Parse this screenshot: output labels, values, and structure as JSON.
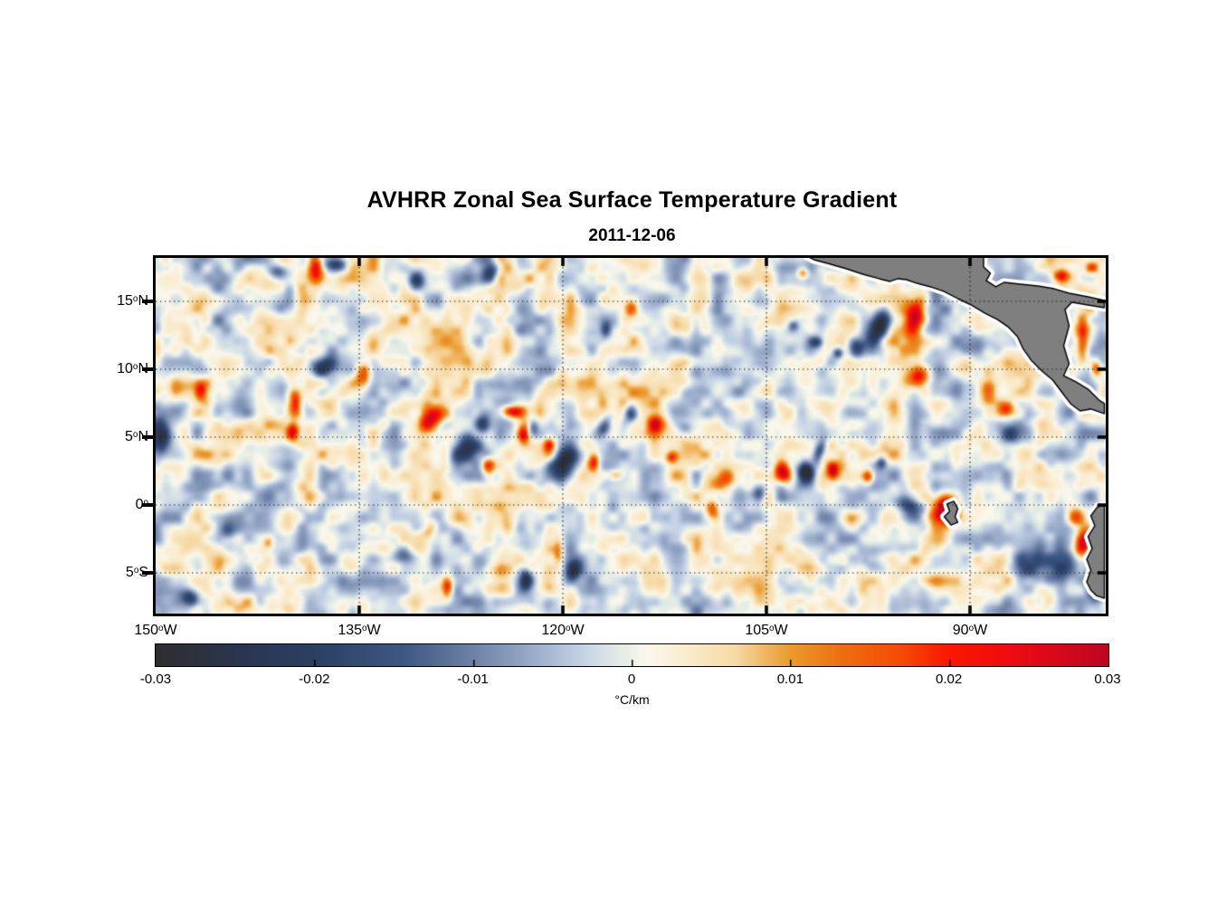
{
  "title": "AVHRR Zonal Sea Surface Temperature Gradient",
  "subtitle": "2011-12-06",
  "chart_data": {
    "type": "heatmap",
    "title": "AVHRR Zonal Sea Surface Temperature Gradient",
    "subtitle": "2011-12-06",
    "lon_range": [
      -150,
      -80
    ],
    "lat_range": [
      -8.0,
      18.2
    ],
    "xticks": [
      {
        "num": "150",
        "hem": "W",
        "lon": -150
      },
      {
        "num": "135",
        "hem": "W",
        "lon": -135
      },
      {
        "num": "120",
        "hem": "W",
        "lon": -120
      },
      {
        "num": "105",
        "hem": "W",
        "lon": -105
      },
      {
        "num": "90",
        "hem": "W",
        "lon": -90
      }
    ],
    "yticks": [
      {
        "num": "15",
        "hem": "N",
        "lat": 15
      },
      {
        "num": "10",
        "hem": "N",
        "lat": 10
      },
      {
        "num": "5",
        "hem": "N",
        "lat": 5
      },
      {
        "num": "0",
        "hem": "",
        "lat": 0
      },
      {
        "num": "5",
        "hem": "S",
        "lat": -5
      }
    ],
    "grid": {
      "lats": [
        15,
        10,
        5,
        0,
        -5
      ],
      "lons": [
        -135,
        -120,
        -105,
        -90
      ],
      "style": "dotted"
    },
    "colors": {
      "background": "#ffffff",
      "land": "#7f7f7f",
      "coast": "#000000",
      "coast_halo": "#ffffff",
      "grid": "#1a1a1a",
      "frame": "#000000"
    },
    "colorbar": {
      "min": -0.03,
      "max": 0.03,
      "tick_labels": [
        "-0.03",
        "-0.02",
        "-0.01",
        "0",
        "0.01",
        "0.02",
        "0.03"
      ],
      "unit": "°C/km",
      "stops": [
        [
          0.0,
          "#2e2e2e"
        ],
        [
          0.09,
          "#2a3550"
        ],
        [
          0.167,
          "#2b3f63"
        ],
        [
          0.26,
          "#3d5884"
        ],
        [
          0.333,
          "#6e81a6"
        ],
        [
          0.4,
          "#9dafcc"
        ],
        [
          0.45,
          "#c6d3e6"
        ],
        [
          0.485,
          "#e2ebe6"
        ],
        [
          0.5,
          "#edf2e8"
        ],
        [
          0.515,
          "#fbf8ee"
        ],
        [
          0.55,
          "#faeed3"
        ],
        [
          0.61,
          "#f6d9a4"
        ],
        [
          0.667,
          "#eb9a2c"
        ],
        [
          0.72,
          "#ed6f12"
        ],
        [
          0.78,
          "#f64c04"
        ],
        [
          0.833,
          "#fa1800"
        ],
        [
          0.9,
          "#ee0a12"
        ],
        [
          1.0,
          "#bd0722"
        ]
      ]
    },
    "noise": {
      "seed": 7,
      "octaves": [
        {
          "amp": 0.0085,
          "cell": 24
        },
        {
          "amp": 0.0042,
          "cell": 11.5
        }
      ]
    },
    "features": [
      [
        -149.5,
        5.1,
        -0.03,
        0.8,
        1.5,
        0
      ],
      [
        -138.2,
        17.5,
        0.026,
        0.7,
        1.3,
        0
      ],
      [
        -136.7,
        17.7,
        -0.022,
        1.1,
        0.7,
        0
      ],
      [
        -141.0,
        17.2,
        -0.015,
        0.9,
        0.6,
        0
      ],
      [
        -137.7,
        10.2,
        -0.022,
        1.3,
        0.8,
        -20
      ],
      [
        -134.7,
        9.7,
        0.022,
        0.7,
        1.1,
        0
      ],
      [
        -139.7,
        7.5,
        0.024,
        0.6,
        1.2,
        0
      ],
      [
        -139.9,
        5.4,
        0.02,
        0.5,
        0.8,
        0
      ],
      [
        -146.7,
        8.4,
        0.018,
        0.5,
        0.8,
        0
      ],
      [
        -129.7,
        6.2,
        0.024,
        0.9,
        1.3,
        30
      ],
      [
        -127.2,
        4.1,
        -0.027,
        1.1,
        1.7,
        35
      ],
      [
        -125.9,
        5.9,
        -0.022,
        0.7,
        0.9,
        0
      ],
      [
        -123.7,
        6.9,
        0.02,
        0.9,
        0.5,
        0
      ],
      [
        -122.9,
        5.2,
        0.022,
        0.5,
        0.8,
        0
      ],
      [
        -125.5,
        2.9,
        0.028,
        0.6,
        0.7,
        0
      ],
      [
        -119.9,
        3.0,
        -0.029,
        1.1,
        1.5,
        20
      ],
      [
        -122.2,
        5.7,
        -0.016,
        0.5,
        0.9,
        0
      ],
      [
        -121.0,
        4.4,
        0.02,
        0.5,
        0.6,
        0
      ],
      [
        -117.7,
        3.2,
        0.018,
        0.5,
        0.8,
        0
      ],
      [
        -116.1,
        2.2,
        0.016,
        0.8,
        0.5,
        0
      ],
      [
        -117.0,
        5.7,
        -0.02,
        0.6,
        1.1,
        25
      ],
      [
        -115.0,
        6.7,
        -0.018,
        0.6,
        0.9,
        0
      ],
      [
        -113.2,
        5.9,
        0.02,
        0.7,
        0.8,
        0
      ],
      [
        -108.3,
        1.9,
        0.022,
        1.2,
        1.1,
        0
      ],
      [
        -109.0,
        -0.3,
        0.018,
        0.6,
        0.8,
        0
      ],
      [
        -105.5,
        0.9,
        -0.02,
        0.7,
        0.9,
        0
      ],
      [
        -103.8,
        2.4,
        0.029,
        0.7,
        0.9,
        0
      ],
      [
        -102.1,
        2.4,
        -0.033,
        0.7,
        0.9,
        0
      ],
      [
        -101.1,
        3.9,
        -0.02,
        0.5,
        1.1,
        20
      ],
      [
        -100.1,
        2.5,
        0.027,
        0.5,
        0.7,
        0
      ],
      [
        -97.5,
        2.1,
        0.022,
        0.5,
        0.7,
        0
      ],
      [
        -96.5,
        3.1,
        -0.018,
        0.5,
        0.6,
        0
      ],
      [
        -94.5,
        -0.1,
        -0.021,
        1.3,
        0.7,
        10
      ],
      [
        -91.7,
        -0.3,
        0.031,
        0.8,
        1.1,
        0
      ],
      [
        -92.3,
        0.0,
        0.016,
        1.7,
        1.3,
        0
      ],
      [
        -96.7,
        13.1,
        -0.03,
        0.9,
        1.7,
        25
      ],
      [
        -98.3,
        11.5,
        -0.022,
        0.8,
        0.9,
        0
      ],
      [
        -94.1,
        13.7,
        0.032,
        0.9,
        1.6,
        15
      ],
      [
        -93.7,
        9.5,
        0.022,
        1.1,
        0.9,
        -30
      ],
      [
        -101.3,
        12.0,
        -0.018,
        0.6,
        0.5,
        0
      ],
      [
        -99.7,
        11.2,
        -0.02,
        0.5,
        0.5,
        0
      ],
      [
        -103.0,
        13.2,
        -0.014,
        0.5,
        0.5,
        0
      ],
      [
        -88.7,
        8.4,
        0.022,
        0.8,
        1.1,
        0
      ],
      [
        -87.3,
        7.1,
        0.018,
        0.7,
        0.7,
        0
      ],
      [
        -84.9,
        11.2,
        -0.018,
        0.5,
        1.5,
        0
      ],
      [
        -81.7,
        12.2,
        0.024,
        0.6,
        2.3,
        0
      ],
      [
        -80.7,
        10.0,
        0.02,
        0.5,
        0.8,
        0
      ],
      [
        -81.7,
        -2.8,
        0.03,
        0.7,
        1.5,
        10
      ],
      [
        -82.1,
        -0.9,
        0.022,
        0.8,
        0.9,
        0
      ],
      [
        -84.3,
        -4.5,
        -0.022,
        2.3,
        1.9,
        0
      ],
      [
        -80.5,
        -6.1,
        -0.026,
        0.9,
        1.3,
        0
      ],
      [
        -87.0,
        5.2,
        -0.012,
        0.8,
        0.8,
        0
      ],
      [
        -83.3,
        16.9,
        0.018,
        0.7,
        0.5,
        0
      ],
      [
        -81.0,
        17.5,
        0.016,
        0.6,
        0.5,
        0
      ],
      [
        -119.2,
        -4.8,
        -0.022,
        0.6,
        0.9,
        20
      ],
      [
        -122.7,
        -5.5,
        -0.018,
        0.5,
        0.9,
        0
      ],
      [
        -128.5,
        -6.1,
        0.022,
        0.5,
        0.9,
        0
      ],
      [
        -120.3,
        -3.5,
        0.014,
        0.5,
        1.3,
        0
      ],
      [
        -131.8,
        -3.6,
        -0.014,
        1.2,
        0.8,
        30
      ],
      [
        -129.8,
        -1.8,
        0.013,
        0.6,
        1.3,
        30
      ],
      [
        -144.7,
        -1.8,
        -0.016,
        0.7,
        0.8,
        0
      ],
      [
        -141.7,
        -2.8,
        0.014,
        0.5,
        0.7,
        0
      ],
      [
        -147.5,
        -6.9,
        -0.022,
        0.8,
        0.7,
        0
      ],
      [
        -125.3,
        17.2,
        -0.02,
        0.7,
        0.9,
        0
      ],
      [
        -130.7,
        16.5,
        -0.014,
        0.7,
        0.8,
        0
      ],
      [
        -115.0,
        14.5,
        0.016,
        0.6,
        0.8,
        0
      ],
      [
        -116.8,
        12.9,
        -0.014,
        0.5,
        0.7,
        0
      ],
      [
        -102.3,
        17.1,
        0.016,
        0.5,
        0.5,
        0
      ],
      [
        -111.0,
        5.7,
        -0.013,
        0.7,
        0.7,
        0
      ],
      [
        -112.0,
        3.5,
        0.015,
        0.5,
        0.5,
        0
      ]
    ],
    "land": {
      "mexico_central_america": [
        [
          -102.0,
          18.33
        ],
        [
          -89.0,
          18.33
        ],
        [
          -89.0,
          17.53
        ],
        [
          -88.5,
          17.07
        ],
        [
          -88.8,
          16.53
        ],
        [
          -88.1,
          16.07
        ],
        [
          -87.5,
          16.4
        ],
        [
          -86.3,
          16.27
        ],
        [
          -85.0,
          16.13
        ],
        [
          -83.8,
          15.93
        ],
        [
          -82.7,
          15.6
        ],
        [
          -81.3,
          15.33
        ],
        [
          -80.1,
          15.07
        ],
        [
          -80.1,
          14.53
        ],
        [
          -82.5,
          14.93
        ],
        [
          -83.0,
          14.4
        ],
        [
          -82.7,
          13.2
        ],
        [
          -83.1,
          11.73
        ],
        [
          -82.7,
          10.4
        ],
        [
          -83.1,
          9.53
        ],
        [
          -82.2,
          9.07
        ],
        [
          -81.3,
          8.53
        ],
        [
          -80.5,
          7.73
        ],
        [
          -80.1,
          7.47
        ],
        [
          -80.1,
          6.73
        ],
        [
          -81.1,
          7.07
        ],
        [
          -81.9,
          6.93
        ],
        [
          -82.6,
          7.47
        ],
        [
          -83.3,
          8.4
        ],
        [
          -83.9,
          9.2
        ],
        [
          -84.7,
          9.87
        ],
        [
          -85.5,
          10.67
        ],
        [
          -86.1,
          11.53
        ],
        [
          -86.5,
          12.4
        ],
        [
          -87.2,
          13.13
        ],
        [
          -88.0,
          13.67
        ],
        [
          -88.9,
          14.13
        ],
        [
          -89.8,
          14.67
        ],
        [
          -90.9,
          15.2
        ],
        [
          -91.9,
          15.73
        ],
        [
          -92.9,
          16.07
        ],
        [
          -93.9,
          16.33
        ],
        [
          -94.7,
          16.6
        ],
        [
          -95.3,
          16.67
        ],
        [
          -95.9,
          16.47
        ],
        [
          -96.7,
          16.67
        ],
        [
          -97.9,
          17.0
        ],
        [
          -99.1,
          17.4
        ],
        [
          -100.5,
          17.8
        ],
        [
          -101.5,
          18.07
        ]
      ],
      "south_america": [
        [
          -80.1,
          0.0
        ],
        [
          -80.6,
          -0.13
        ],
        [
          -81.1,
          -0.8
        ],
        [
          -80.8,
          -1.53
        ],
        [
          -81.3,
          -2.33
        ],
        [
          -81.0,
          -3.2
        ],
        [
          -81.4,
          -4.0
        ],
        [
          -81.1,
          -4.8
        ],
        [
          -81.4,
          -5.67
        ],
        [
          -81.1,
          -6.27
        ],
        [
          -80.7,
          -6.67
        ],
        [
          -80.1,
          -6.87
        ]
      ],
      "galapagos": [
        [
          -91.7,
          0.07
        ],
        [
          -91.2,
          0.27
        ],
        [
          -90.9,
          -0.27
        ],
        [
          -91.1,
          -0.87
        ],
        [
          -90.9,
          -1.27
        ],
        [
          -91.4,
          -1.47
        ],
        [
          -91.9,
          -0.87
        ],
        [
          -91.5,
          -0.47
        ]
      ]
    }
  }
}
